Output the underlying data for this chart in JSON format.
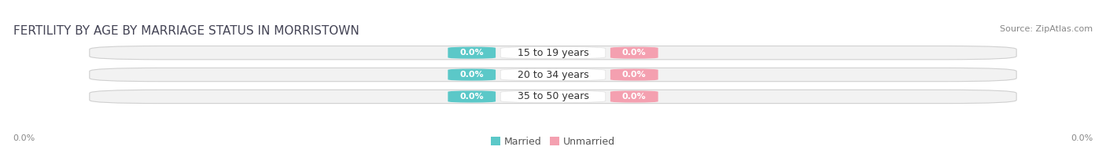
{
  "title": "FERTILITY BY AGE BY MARRIAGE STATUS IN MORRISTOWN",
  "source": "Source: ZipAtlas.com",
  "categories": [
    "15 to 19 years",
    "20 to 34 years",
    "35 to 50 years"
  ],
  "married_values": [
    0.0,
    0.0,
    0.0
  ],
  "unmarried_values": [
    0.0,
    0.0,
    0.0
  ],
  "married_color": "#5bc8c8",
  "unmarried_color": "#f4a0b0",
  "bar_bg_color": "#f2f2f2",
  "bar_bg_edge_color": "#d0d0d0",
  "center_box_color": "#ffffff",
  "title_fontsize": 11,
  "source_fontsize": 8,
  "label_fontsize": 8,
  "category_fontsize": 9,
  "value_fontsize": 8,
  "legend_fontsize": 9,
  "left_label": "0.0%",
  "right_label": "0.0%",
  "fig_bg_color": "#ffffff",
  "bar_height": 0.62,
  "xlim": [
    -1.0,
    1.0
  ]
}
